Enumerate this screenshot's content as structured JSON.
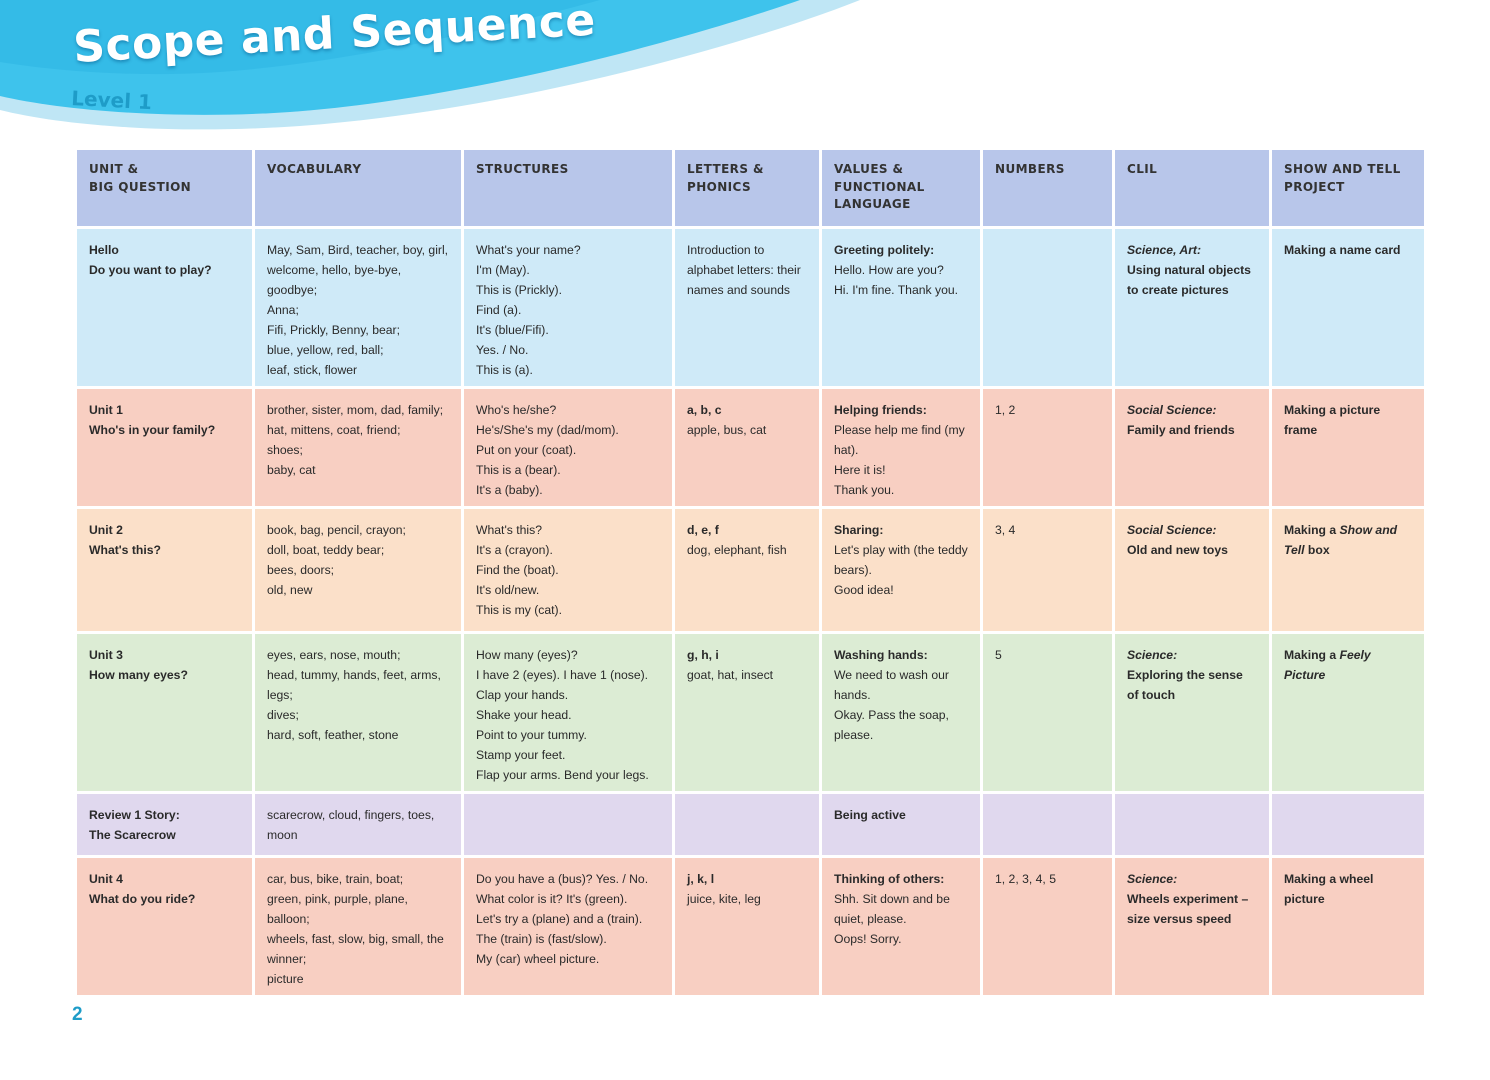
{
  "header": {
    "title": "Scope and Sequence",
    "subtitle": "Level 1"
  },
  "colors": {
    "header_row": "#b8c6ea",
    "blue": "#cfeaf8",
    "red": "#f8cfc2",
    "orange": "#fbe0c9",
    "green": "#dcecd4",
    "purple": "#e0d8ee",
    "accent": "#1e9cc8"
  },
  "table": {
    "headers": [
      [
        "UNIT &",
        "BIG QUESTION"
      ],
      [
        "VOCABULARY"
      ],
      [
        "STRUCTURES"
      ],
      [
        "LETTERS &",
        "PHONICS"
      ],
      [
        "VALUES &",
        "FUNCTIONAL",
        "LANGUAGE"
      ],
      [
        "NUMBERS"
      ],
      [
        "CLIL"
      ],
      [
        "SHOW AND TELL",
        "PROJECT"
      ]
    ],
    "rows": [
      {
        "unit": [
          "Hello",
          "Do you want to play?"
        ],
        "vocabulary": [
          "May, Sam, Bird, teacher, boy, girl, welcome, hello, bye-bye, goodbye;",
          "Anna;",
          "Fifi, Prickly, Benny, bear;",
          "blue, yellow, red, ball;",
          "leaf, stick, flower"
        ],
        "structures": [
          "What's your name?",
          "I'm (May).",
          "This is (Prickly).",
          "Find (a).",
          "It's (blue/Fifi).",
          "Yes. / No.",
          "This is (a)."
        ],
        "letters": [
          "Introduction to alphabet letters: their names and sounds"
        ],
        "values_title": "Greeting politely:",
        "values": [
          "Hello. How are you?",
          "Hi. I'm fine. Thank you."
        ],
        "numbers": "",
        "clil_subject": "Science, Art:",
        "clil_topic": "Using natural objects to create pictures",
        "project": "Making a name card"
      },
      {
        "unit": [
          "Unit 1",
          "Who's in your family?"
        ],
        "vocabulary": [
          "brother, sister, mom, dad, family;",
          "hat, mittens, coat, friend;",
          "shoes;",
          "baby, cat"
        ],
        "structures": [
          "Who's he/she?",
          "He's/She's my (dad/mom).",
          "Put on your (coat).",
          "This is a (bear).",
          "It's a (baby)."
        ],
        "letters_title": "a, b, c",
        "letters": [
          "apple, bus, cat"
        ],
        "values_title": "Helping friends:",
        "values": [
          "Please help me find (my hat).",
          "Here it is!",
          "Thank you."
        ],
        "numbers": "1, 2",
        "clil_subject": "Social Science:",
        "clil_topic": "Family and friends",
        "project": "Making a picture frame"
      },
      {
        "unit": [
          "Unit 2",
          "What's this?"
        ],
        "vocabulary": [
          "book, bag, pencil, crayon;",
          "doll, boat, teddy bear;",
          "bees, doors;",
          "old, new"
        ],
        "structures": [
          "What's this?",
          "It's a (crayon).",
          "Find the (boat).",
          "It's old/new.",
          "This is my (cat)."
        ],
        "letters_title": "d, e, f",
        "letters": [
          "dog, elephant, fish"
        ],
        "values_title": "Sharing:",
        "values": [
          "Let's play with (the teddy bears).",
          "Good idea!"
        ],
        "numbers": "3, 4",
        "clil_subject": "Social Science:",
        "clil_topic": "Old and new toys",
        "project_prefix": "Making a ",
        "project_italic": "Show and Tell",
        "project_suffix": " box"
      },
      {
        "unit": [
          "Unit 3",
          "How many eyes?"
        ],
        "vocabulary": [
          "eyes, ears, nose, mouth;",
          "head, tummy, hands, feet, arms, legs;",
          "dives;",
          "hard, soft, feather, stone"
        ],
        "structures": [
          "How many (eyes)?",
          "I have 2 (eyes). I have 1 (nose).",
          "Clap your hands.",
          "Shake your head.",
          "Point to your tummy.",
          "Stamp your feet.",
          "Flap your arms. Bend your legs."
        ],
        "letters_title": "g, h, i",
        "letters": [
          "goat, hat, insect"
        ],
        "values_title": "Washing hands:",
        "values": [
          "We need to wash our hands.",
          "Okay. Pass the soap, please."
        ],
        "numbers": "5",
        "clil_subject": "Science:",
        "clil_topic": "Exploring the sense of touch",
        "project_prefix": "Making a ",
        "project_italic": "Feely Picture",
        "project_suffix": ""
      },
      {
        "unit": [
          "Review 1 Story:",
          "The Scarecrow"
        ],
        "vocabulary": [
          "scarecrow, cloud, fingers, toes, moon"
        ],
        "structures": [],
        "letters": [],
        "values_title": "Being active",
        "values": [],
        "numbers": "",
        "clil_subject": "",
        "clil_topic": "",
        "project": ""
      },
      {
        "unit": [
          "Unit 4",
          "What do you ride?"
        ],
        "vocabulary": [
          "car, bus, bike, train, boat;",
          "green, pink, purple, plane, balloon;",
          "wheels, fast, slow, big, small, the winner;",
          "picture"
        ],
        "structures": [
          "Do you have a (bus)? Yes. / No.",
          "What color is it? It's (green).",
          "Let's try a (plane) and a (train).",
          "The (train) is (fast/slow).",
          "My (car) wheel picture."
        ],
        "letters_title": "j, k, l",
        "letters": [
          "juice, kite, leg"
        ],
        "values_title": "Thinking of others:",
        "values": [
          "Shh. Sit down and be quiet, please.",
          "Oops! Sorry."
        ],
        "numbers": "1, 2, 3, 4, 5",
        "clil_subject": "Science:",
        "clil_topic": "Wheels experiment – size versus speed",
        "project": "Making a wheel picture"
      }
    ]
  },
  "footer": {
    "page_number": "2"
  }
}
